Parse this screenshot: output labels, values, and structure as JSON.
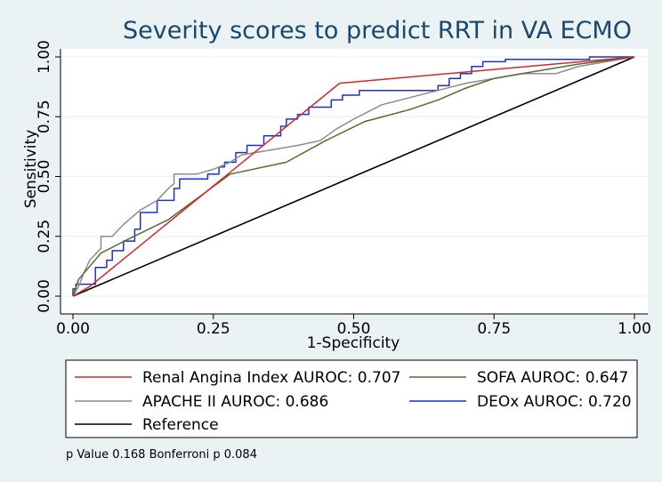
{
  "chart_data": {
    "type": "line",
    "title": "Severity scores to predict RRT in VA ECMO",
    "xlabel": "1-Specificity",
    "ylabel": "Sensitivity",
    "xlim": [
      0,
      1
    ],
    "ylim": [
      0,
      1
    ],
    "xticks": [
      "0.00",
      "0.25",
      "0.50",
      "0.75",
      "1.00"
    ],
    "yticks": [
      "0.00",
      "0.25",
      "0.50",
      "0.75",
      "1.00"
    ],
    "grid": true,
    "legend_position": "bottom",
    "note": "p Value 0.168 Bonferroni p 0.084",
    "series": [
      {
        "name": "Renal Angina Index",
        "legend_label": "Renal Angina Index AUROC: 0.707",
        "color": "#d62728",
        "x": [
          0,
          0.03,
          0.475,
          1.0
        ],
        "y": [
          0,
          0.04,
          0.89,
          1.0
        ]
      },
      {
        "name": "APACHE II",
        "legend_label": "APACHE II  AUROC: 0.686",
        "color": "#8c8c8c",
        "x": [
          0,
          0.01,
          0.02,
          0.03,
          0.05,
          0.05,
          0.07,
          0.09,
          0.12,
          0.15,
          0.17,
          0.18,
          0.18,
          0.22,
          0.25,
          0.28,
          0.3,
          0.35,
          0.4,
          0.44,
          0.47,
          0.5,
          0.55,
          0.6,
          0.65,
          0.7,
          0.75,
          0.8,
          0.86,
          0.9,
          1.0
        ],
        "y": [
          0,
          0.04,
          0.1,
          0.15,
          0.2,
          0.25,
          0.25,
          0.3,
          0.36,
          0.4,
          0.45,
          0.47,
          0.51,
          0.51,
          0.53,
          0.56,
          0.59,
          0.61,
          0.63,
          0.65,
          0.7,
          0.74,
          0.8,
          0.83,
          0.86,
          0.89,
          0.91,
          0.93,
          0.93,
          0.96,
          1.0
        ]
      },
      {
        "name": "SOFA",
        "legend_label": "SOFA AUROC: 0.647",
        "color": "#556b2f",
        "x": [
          0,
          0.01,
          0.05,
          0.1,
          0.17,
          0.28,
          0.38,
          0.45,
          0.52,
          0.6,
          0.65,
          0.7,
          0.75,
          0.8,
          0.9,
          1.0
        ],
        "y": [
          0,
          0.07,
          0.18,
          0.24,
          0.32,
          0.51,
          0.56,
          0.65,
          0.73,
          0.78,
          0.82,
          0.87,
          0.91,
          0.93,
          0.97,
          1.0
        ]
      },
      {
        "name": "DEOx",
        "legend_label": "DEOx AUROC: 0.720",
        "color": "#1f2fd0",
        "x": [
          0,
          0,
          0.005,
          0.005,
          0.04,
          0.04,
          0.06,
          0.06,
          0.07,
          0.07,
          0.09,
          0.09,
          0.11,
          0.11,
          0.12,
          0.12,
          0.15,
          0.15,
          0.18,
          0.18,
          0.19,
          0.19,
          0.24,
          0.24,
          0.26,
          0.26,
          0.27,
          0.27,
          0.29,
          0.29,
          0.31,
          0.31,
          0.34,
          0.34,
          0.37,
          0.37,
          0.38,
          0.38,
          0.4,
          0.4,
          0.42,
          0.42,
          0.46,
          0.46,
          0.48,
          0.48,
          0.51,
          0.51,
          0.65,
          0.65,
          0.67,
          0.67,
          0.69,
          0.69,
          0.71,
          0.71,
          0.73,
          0.73,
          0.77,
          0.77,
          0.92,
          0.92,
          1.0
        ],
        "y": [
          0,
          0.03,
          0.03,
          0.05,
          0.05,
          0.12,
          0.12,
          0.15,
          0.15,
          0.19,
          0.19,
          0.23,
          0.23,
          0.28,
          0.28,
          0.35,
          0.35,
          0.4,
          0.4,
          0.45,
          0.45,
          0.49,
          0.49,
          0.51,
          0.51,
          0.54,
          0.54,
          0.56,
          0.56,
          0.6,
          0.6,
          0.63,
          0.63,
          0.67,
          0.67,
          0.71,
          0.71,
          0.74,
          0.74,
          0.76,
          0.76,
          0.79,
          0.79,
          0.82,
          0.82,
          0.84,
          0.84,
          0.86,
          0.86,
          0.88,
          0.88,
          0.91,
          0.91,
          0.93,
          0.93,
          0.96,
          0.96,
          0.98,
          0.98,
          0.99,
          0.99,
          1.0,
          1.0
        ]
      },
      {
        "name": "Reference",
        "legend_label": "Reference",
        "color": "#000000",
        "x": [
          0,
          1
        ],
        "y": [
          0,
          1
        ]
      }
    ]
  }
}
